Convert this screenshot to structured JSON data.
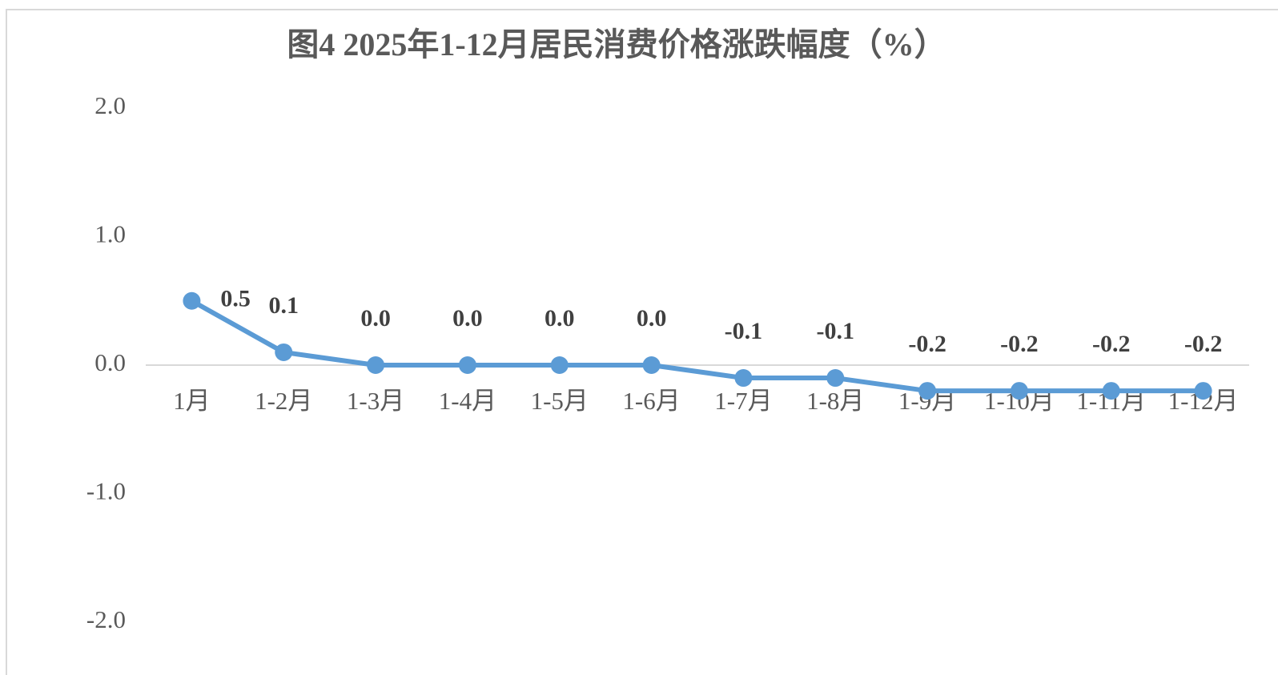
{
  "chart_data": {
    "type": "line",
    "title": "图4  2025年1-12月居民消费价格涨跌幅度（%）",
    "categories": [
      "1月",
      "1-2月",
      "1-3月",
      "1-4月",
      "1-5月",
      "1-6月",
      "1-7月",
      "1-8月",
      "1-9月",
      "1-10月",
      "1-11月",
      "1-12月"
    ],
    "values": [
      0.5,
      0.1,
      0.0,
      0.0,
      0.0,
      0.0,
      -0.1,
      -0.1,
      -0.2,
      -0.2,
      -0.2,
      -0.2
    ],
    "value_labels": [
      "0.5",
      "0.1",
      "0.0",
      "0.0",
      "0.0",
      "0.0",
      "-0.1",
      "-0.1",
      "-0.2",
      "-0.2",
      "-0.2",
      "-0.2"
    ],
    "color": "#5b9bd5",
    "ylim": [
      -2,
      2
    ],
    "yticks": [
      {
        "value": 2,
        "label": "2.0"
      },
      {
        "value": 1,
        "label": "1.0"
      },
      {
        "value": 0,
        "label": "0.0"
      },
      {
        "value": -1,
        "label": "-1.0"
      },
      {
        "value": -2,
        "label": "-2.0"
      }
    ],
    "grid": false
  }
}
